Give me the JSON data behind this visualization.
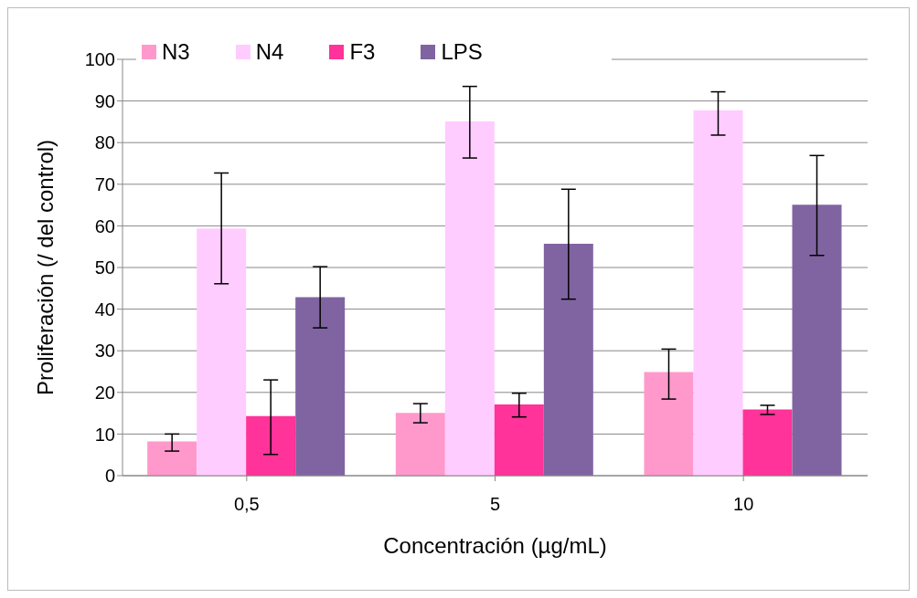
{
  "chart_data": {
    "type": "bar",
    "xlabel": "Concentración (µg/mL)",
    "ylabel": "Proliferación  (/  del control)",
    "categories": [
      "0,5",
      "5",
      "10"
    ],
    "series": [
      {
        "name": "N3",
        "color": "#ff99cc",
        "values": [
          8.2,
          15.1,
          24.9
        ],
        "errors": [
          [
            5.9,
            10.0
          ],
          [
            12.7,
            17.3
          ],
          [
            18.4,
            30.4
          ]
        ]
      },
      {
        "name": "N4",
        "color": "#ffccff",
        "values": [
          59.4,
          85.1,
          87.8
        ],
        "errors": [
          [
            46.1,
            72.7
          ],
          [
            76.3,
            93.5
          ],
          [
            81.8,
            92.2
          ]
        ]
      },
      {
        "name": "F3",
        "color": "#ff3399",
        "values": [
          14.3,
          17.1,
          15.9
        ],
        "errors": [
          [
            5.1,
            23.0
          ],
          [
            14.1,
            19.8
          ],
          [
            14.7,
            16.9
          ]
        ]
      },
      {
        "name": "LPS",
        "color": "#8064a2",
        "values": [
          42.9,
          55.7,
          65.1
        ],
        "errors": [
          [
            35.5,
            50.2
          ],
          [
            42.4,
            68.8
          ],
          [
            52.9,
            76.9
          ]
        ]
      }
    ],
    "ylim": [
      0,
      100
    ],
    "yticks": [
      0,
      10,
      20,
      30,
      40,
      50,
      60,
      70,
      80,
      90,
      100
    ],
    "grid": "y",
    "legend": "top"
  }
}
